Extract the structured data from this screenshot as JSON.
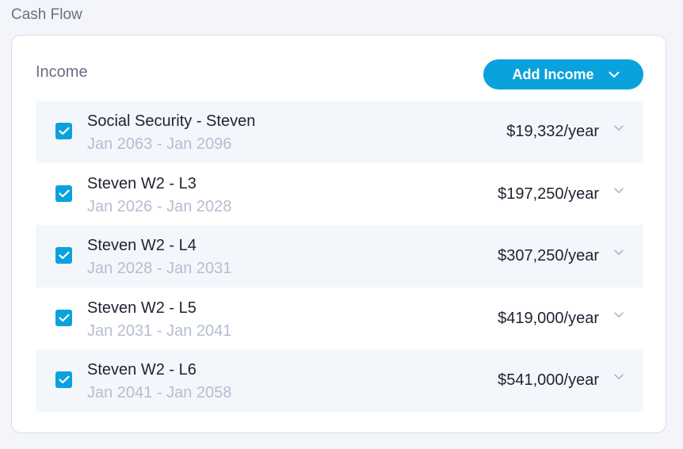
{
  "section": {
    "title": "Cash Flow"
  },
  "card": {
    "title": "Income",
    "add_button_label": "Add Income"
  },
  "colors": {
    "accent": "#0aa2dc",
    "row_shade": "#f3f7fc",
    "muted_text": "#b5bed0"
  },
  "income_rows": [
    {
      "name": "Social Security - Steven",
      "dates": "Jan 2063 - Jan 2096",
      "amount": "$19,332/year",
      "checked": true
    },
    {
      "name": "Steven W2 - L3",
      "dates": "Jan 2026 - Jan 2028",
      "amount": "$197,250/year",
      "checked": true
    },
    {
      "name": "Steven W2 - L4",
      "dates": "Jan 2028 - Jan 2031",
      "amount": "$307,250/year",
      "checked": true
    },
    {
      "name": "Steven W2 - L5",
      "dates": "Jan 2031 - Jan 2041",
      "amount": "$419,000/year",
      "checked": true
    },
    {
      "name": "Steven W2 - L6",
      "dates": "Jan 2041 - Jan 2058",
      "amount": "$541,000/year",
      "checked": true
    }
  ]
}
